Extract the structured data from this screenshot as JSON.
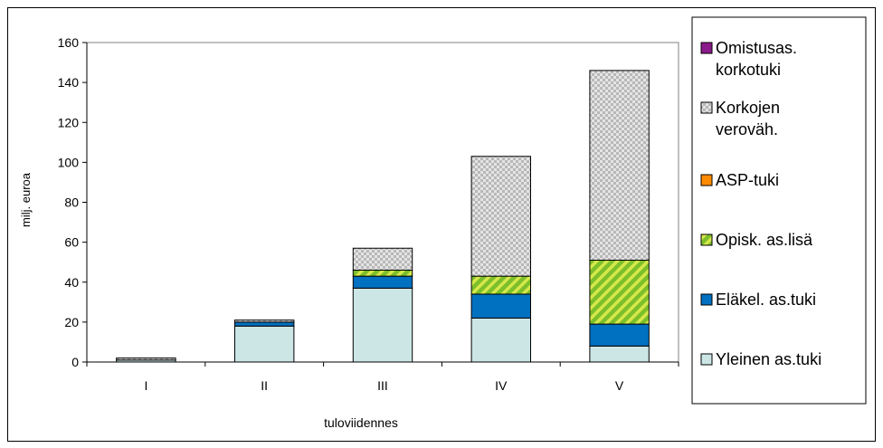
{
  "chart_data": {
    "type": "bar",
    "stacked": true,
    "title": "",
    "xlabel": "tuloviidennes",
    "ylabel": "milj. euroa",
    "ylim": [
      0,
      160
    ],
    "yticks": [
      0,
      20,
      40,
      60,
      80,
      100,
      120,
      140,
      160
    ],
    "grid": false,
    "legend_position": "right",
    "categories": [
      "I",
      "II",
      "III",
      "IV",
      "V"
    ],
    "series": [
      {
        "name": "Yleinen as.tuki",
        "color": "#cce6e6",
        "pattern": "solid",
        "values": [
          1,
          18,
          37,
          22,
          8
        ]
      },
      {
        "name": "Eläkel. as.tuki",
        "color": "#0070c0",
        "pattern": "solid",
        "values": [
          0,
          2,
          6,
          12,
          11
        ]
      },
      {
        "name": "Opisk. as.lisä",
        "color": "#7cbf2a",
        "pattern": "diagonal-stripes",
        "values": [
          0,
          0,
          3,
          9,
          32
        ]
      },
      {
        "name": "ASP-tuki",
        "color": "#ff8c00",
        "pattern": "solid",
        "values": [
          0,
          0,
          0,
          0,
          0
        ]
      },
      {
        "name": "Korkojen verovähennys",
        "legend_lines": [
          "Korkojen",
          "veroväh."
        ],
        "color": "#c8c8c8",
        "pattern": "checker",
        "values": [
          1,
          1,
          11,
          60,
          95
        ]
      },
      {
        "name": "Omistusasuntojen korkotuki",
        "legend_lines": [
          "Omistusas.",
          "korkotuki"
        ],
        "color": "#8b1a8b",
        "pattern": "solid",
        "values": [
          0,
          0,
          0,
          0,
          0
        ]
      }
    ]
  }
}
